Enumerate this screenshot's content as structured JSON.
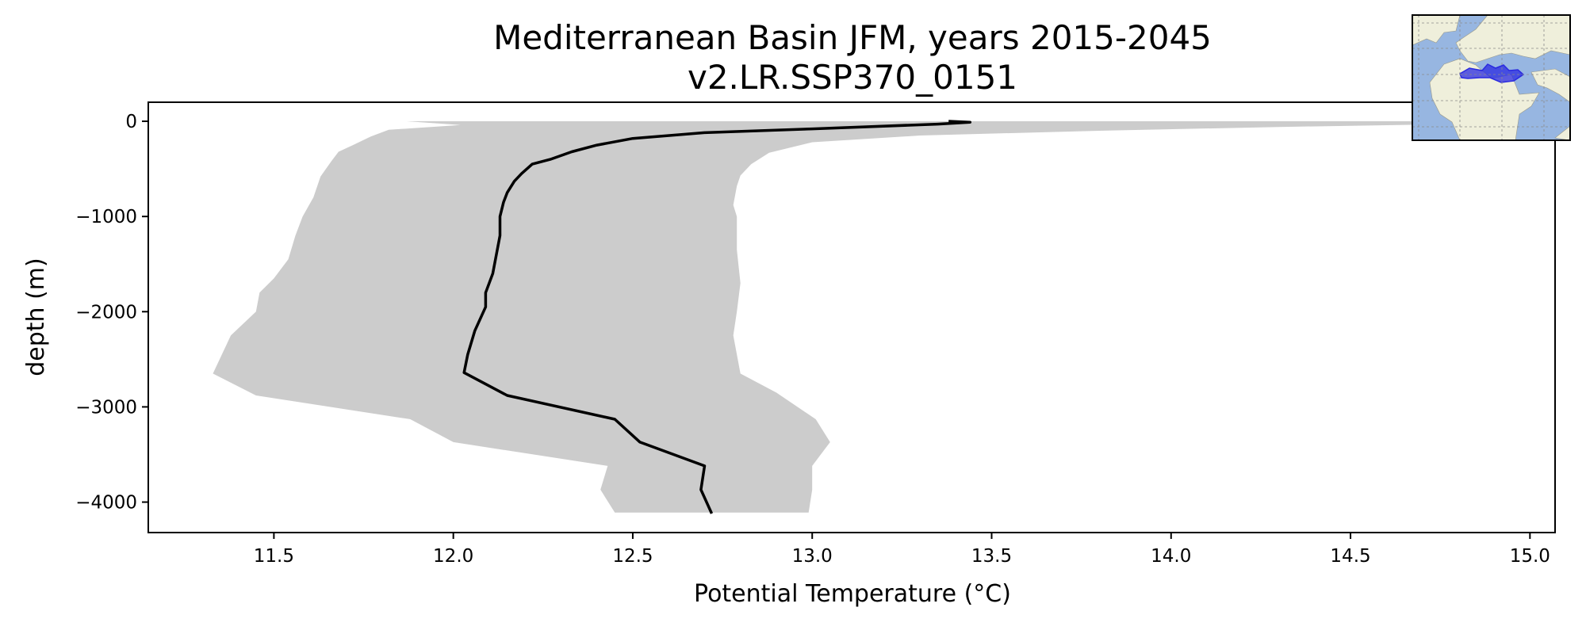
{
  "chart_data": {
    "type": "line",
    "title": "Mediterranean Basin JFM, years 2015-2045",
    "subtitle": "v2.LR.SSP370_0151",
    "xlabel": "Potential Temperature (°C)",
    "ylabel": "depth (m)",
    "xlim": [
      11.15,
      15.07
    ],
    "ylim": [
      -4320,
      200
    ],
    "xticks": [
      "11.5",
      "12.0",
      "12.5",
      "13.0",
      "13.5",
      "14.0",
      "14.5",
      "15.0"
    ],
    "xtick_values": [
      11.5,
      12.0,
      12.5,
      13.0,
      13.5,
      14.0,
      14.5,
      15.0
    ],
    "yticks": [
      "0",
      "−1000",
      "−2000",
      "−3000",
      "−4000"
    ],
    "ytick_values": [
      0,
      -1000,
      -2000,
      -3000,
      -4000
    ],
    "grid": false,
    "series": [
      {
        "style": "mean",
        "color": "#000000",
        "points": [
          [
            13.38,
            0
          ],
          [
            13.44,
            -10
          ],
          [
            13.35,
            -30
          ],
          [
            13.0,
            -80
          ],
          [
            12.7,
            -120
          ],
          [
            12.5,
            -180
          ],
          [
            12.4,
            -250
          ],
          [
            12.33,
            -320
          ],
          [
            12.27,
            -400
          ],
          [
            12.22,
            -450
          ],
          [
            12.19,
            -550
          ],
          [
            12.17,
            -630
          ],
          [
            12.15,
            -750
          ],
          [
            12.14,
            -850
          ],
          [
            12.13,
            -1000
          ],
          [
            12.13,
            -1200
          ],
          [
            12.11,
            -1600
          ],
          [
            12.09,
            -1800
          ],
          [
            12.09,
            -1950
          ],
          [
            12.06,
            -2200
          ],
          [
            12.04,
            -2450
          ],
          [
            12.03,
            -2640
          ],
          [
            12.15,
            -2880
          ],
          [
            12.45,
            -3130
          ],
          [
            12.52,
            -3370
          ],
          [
            12.7,
            -3620
          ],
          [
            12.69,
            -3870
          ],
          [
            12.72,
            -4120
          ]
        ]
      }
    ],
    "band": {
      "style": "range",
      "color": "#cccccc",
      "upper": [
        [
          14.7,
          0
        ],
        [
          14.95,
          -20
        ],
        [
          14.3,
          -60
        ],
        [
          13.8,
          -100
        ],
        [
          13.3,
          -150
        ],
        [
          13.0,
          -220
        ],
        [
          12.88,
          -330
        ],
        [
          12.83,
          -450
        ],
        [
          12.8,
          -570
        ],
        [
          12.79,
          -680
        ],
        [
          12.78,
          -880
        ],
        [
          12.79,
          -1000
        ],
        [
          12.79,
          -1350
        ],
        [
          12.8,
          -1700
        ],
        [
          12.79,
          -2000
        ],
        [
          12.78,
          -2250
        ],
        [
          12.8,
          -2650
        ],
        [
          12.9,
          -2850
        ],
        [
          13.01,
          -3130
        ],
        [
          13.05,
          -3370
        ],
        [
          13.0,
          -3620
        ],
        [
          13.0,
          -3870
        ],
        [
          12.99,
          -4110
        ]
      ],
      "lower": [
        [
          11.87,
          0
        ],
        [
          12.02,
          -40
        ],
        [
          11.82,
          -90
        ],
        [
          11.77,
          -160
        ],
        [
          11.72,
          -250
        ],
        [
          11.68,
          -320
        ],
        [
          11.66,
          -420
        ],
        [
          11.63,
          -580
        ],
        [
          11.61,
          -800
        ],
        [
          11.58,
          -1000
        ],
        [
          11.56,
          -1200
        ],
        [
          11.54,
          -1450
        ],
        [
          11.5,
          -1650
        ],
        [
          11.46,
          -1800
        ],
        [
          11.45,
          -2000
        ],
        [
          11.38,
          -2250
        ],
        [
          11.33,
          -2650
        ],
        [
          11.45,
          -2880
        ],
        [
          11.88,
          -3130
        ],
        [
          12.0,
          -3370
        ],
        [
          12.43,
          -3620
        ],
        [
          12.41,
          -3870
        ],
        [
          12.45,
          -4110
        ]
      ]
    }
  },
  "inset_map": {
    "ocean_color": "#97b6e1",
    "land_color": "#efefdb",
    "region_color": "#2a2ae0"
  }
}
